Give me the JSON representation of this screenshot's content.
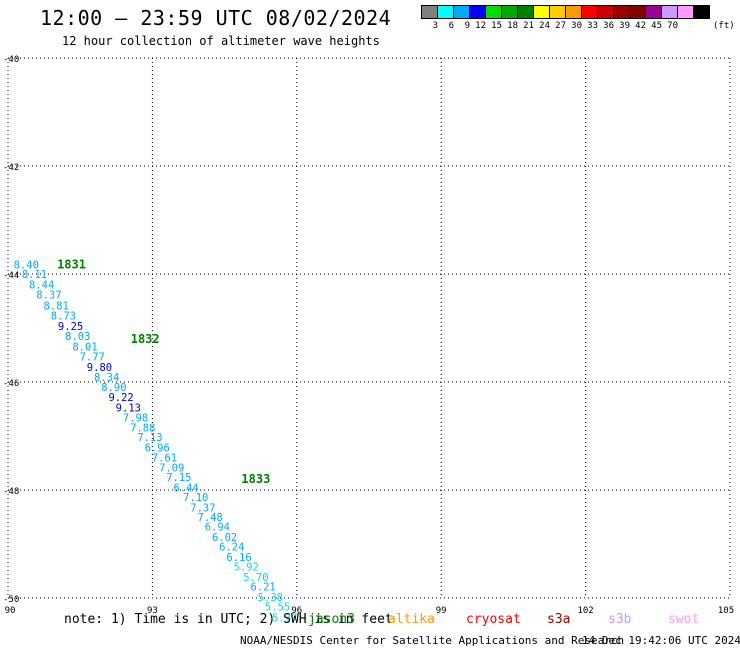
{
  "header": {
    "title": "12:00 — 23:59 UTC 08/02/2024",
    "subtitle": "12 hour collection of altimeter wave heights"
  },
  "colorbar": {
    "colors": [
      "#808080",
      "#00ffff",
      "#00aaff",
      "#0000ff",
      "#00dd00",
      "#00aa00",
      "#008000",
      "#ffff00",
      "#ffcc00",
      "#ff9900",
      "#ff0000",
      "#cc0000",
      "#990000",
      "#800000",
      "#990099",
      "#cc99ff",
      "#ff99ff",
      "#000000"
    ],
    "labels": [
      "3",
      "6",
      "9",
      "12",
      "15",
      "18",
      "21",
      "24",
      "27",
      "30",
      "33",
      "36",
      "39",
      "42",
      "45",
      "70"
    ],
    "unit": "(ft)"
  },
  "axes": {
    "lat_labels": [
      "-40",
      "-42",
      "-44",
      "-46",
      "-48",
      "-50"
    ],
    "lon_labels": [
      "90",
      "93",
      "96",
      "99",
      "102",
      "105"
    ]
  },
  "chart_data": {
    "type": "scatter",
    "x_range": [
      90,
      105
    ],
    "y_range": [
      -50,
      -40
    ],
    "grid": true,
    "x_label_values": [
      90,
      93,
      96,
      99,
      102,
      105
    ],
    "y_label_values": [
      -40,
      -42,
      -44,
      -46,
      -48,
      -50
    ],
    "pass_times": [
      {
        "label": "1831",
        "lon": 91.32,
        "lat": -43.82
      },
      {
        "label": "1832",
        "lon": 92.85,
        "lat": -45.2
      },
      {
        "label": "1833",
        "lon": 95.15,
        "lat": -47.8
      }
    ],
    "points": [
      {
        "lon": 90.38,
        "lat": -43.82,
        "v": "8.40",
        "c": "#00aaff"
      },
      {
        "lon": 90.55,
        "lat": -44.0,
        "v": "8.11",
        "c": "#00aaff"
      },
      {
        "lon": 90.7,
        "lat": -44.19,
        "v": "8.44",
        "c": "#00aaff"
      },
      {
        "lon": 90.85,
        "lat": -44.38,
        "v": "8.37",
        "c": "#00aaff"
      },
      {
        "lon": 91.0,
        "lat": -44.58,
        "v": "8.81",
        "c": "#00aaff"
      },
      {
        "lon": 91.15,
        "lat": -44.77,
        "v": "8.73",
        "c": "#00aaff"
      },
      {
        "lon": 91.3,
        "lat": -44.96,
        "v": "9.25",
        "c": "#0000cc"
      },
      {
        "lon": 91.45,
        "lat": -45.15,
        "v": "8.03",
        "c": "#00aaff"
      },
      {
        "lon": 91.6,
        "lat": -45.34,
        "v": "8.01",
        "c": "#00aaff"
      },
      {
        "lon": 91.75,
        "lat": -45.53,
        "v": "7.77",
        "c": "#00aaff"
      },
      {
        "lon": 91.9,
        "lat": -45.72,
        "v": "9.80",
        "c": "#0000cc"
      },
      {
        "lon": 92.05,
        "lat": -45.91,
        "v": "8.34",
        "c": "#00aaff"
      },
      {
        "lon": 92.2,
        "lat": -46.09,
        "v": "8.90",
        "c": "#00aaff"
      },
      {
        "lon": 92.35,
        "lat": -46.28,
        "v": "9.22",
        "c": "#0000cc"
      },
      {
        "lon": 92.5,
        "lat": -46.47,
        "v": "9.13",
        "c": "#0000cc"
      },
      {
        "lon": 92.65,
        "lat": -46.66,
        "v": "7.98",
        "c": "#00aaff"
      },
      {
        "lon": 92.8,
        "lat": -46.84,
        "v": "7.88",
        "c": "#00aaff"
      },
      {
        "lon": 92.95,
        "lat": -47.02,
        "v": "7.13",
        "c": "#00aaff"
      },
      {
        "lon": 93.1,
        "lat": -47.21,
        "v": "6.96",
        "c": "#00aaff"
      },
      {
        "lon": 93.25,
        "lat": -47.4,
        "v": "7.61",
        "c": "#00aaff"
      },
      {
        "lon": 93.4,
        "lat": -47.58,
        "v": "7.09",
        "c": "#00aaff"
      },
      {
        "lon": 93.55,
        "lat": -47.76,
        "v": "7.15",
        "c": "#00aaff"
      },
      {
        "lon": 93.7,
        "lat": -47.95,
        "v": "6.44",
        "c": "#00aaff"
      },
      {
        "lon": 93.9,
        "lat": -48.13,
        "v": "7.10",
        "c": "#00aaff"
      },
      {
        "lon": 94.05,
        "lat": -48.32,
        "v": "7.37",
        "c": "#00aaff"
      },
      {
        "lon": 94.2,
        "lat": -48.5,
        "v": "7.48",
        "c": "#00aaff"
      },
      {
        "lon": 94.35,
        "lat": -48.68,
        "v": "6.94",
        "c": "#00aaff"
      },
      {
        "lon": 94.5,
        "lat": -48.87,
        "v": "6.02",
        "c": "#00aaff"
      },
      {
        "lon": 94.65,
        "lat": -49.05,
        "v": "6.24",
        "c": "#00aaff"
      },
      {
        "lon": 94.8,
        "lat": -49.24,
        "v": "6.16",
        "c": "#00aaff"
      },
      {
        "lon": 94.95,
        "lat": -49.42,
        "v": "5.92",
        "c": "#00ddee"
      },
      {
        "lon": 95.15,
        "lat": -49.61,
        "v": "5.70",
        "c": "#00ddee"
      },
      {
        "lon": 95.3,
        "lat": -49.79,
        "v": "6.21",
        "c": "#00aaff"
      },
      {
        "lon": 95.45,
        "lat": -49.98,
        "v": "5.38",
        "c": "#00ddee"
      },
      {
        "lon": 95.6,
        "lat": -50.16,
        "v": "5.55",
        "c": "#00ddee"
      },
      {
        "lon": 95.75,
        "lat": -50.36,
        "v": "5.37",
        "c": "#00ddee"
      }
    ]
  },
  "footer": {
    "note": "note: 1) Time is in UTC; 2) SWH is in feet",
    "satellites": [
      {
        "name": "jason3",
        "color": "#008000"
      },
      {
        "name": "altika",
        "color": "#ff9900"
      },
      {
        "name": "cryosat",
        "color": "#ff0000"
      },
      {
        "name": "s3a",
        "color": "#990000"
      },
      {
        "name": "s3b",
        "color": "#cc99ff"
      },
      {
        "name": "swot",
        "color": "#ff99ff"
      }
    ],
    "credit": "NOAA/NESDIS Center for Satellite Applications and Research",
    "timestamp": "14 Dec 19:42:06 UTC 2024"
  }
}
